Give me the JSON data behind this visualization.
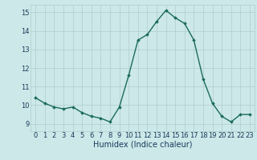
{
  "x": [
    0,
    1,
    2,
    3,
    4,
    5,
    6,
    7,
    8,
    9,
    10,
    11,
    12,
    13,
    14,
    15,
    16,
    17,
    18,
    19,
    20,
    21,
    22,
    23
  ],
  "y": [
    10.4,
    10.1,
    9.9,
    9.8,
    9.9,
    9.6,
    9.4,
    9.3,
    9.1,
    9.9,
    11.6,
    13.5,
    13.8,
    14.5,
    15.1,
    14.7,
    14.4,
    13.5,
    11.4,
    10.1,
    9.4,
    9.1,
    9.5,
    9.5
  ],
  "line_color": "#1a6b5e",
  "marker": "D",
  "marker_size": 1.8,
  "bg_color": "#cce8e8",
  "grid_color_major": "#b0cccc",
  "grid_color_minor": "#c8dcdc",
  "xlabel": "Humidex (Indice chaleur)",
  "xlabel_fontsize": 7,
  "xlabel_color": "#1a3a5c",
  "tick_label_color": "#1a3a5c",
  "tick_fontsize": 6,
  "ylim": [
    8.6,
    15.4
  ],
  "yticks": [
    9,
    10,
    11,
    12,
    13,
    14,
    15
  ],
  "xlim": [
    -0.5,
    23.5
  ],
  "xticks": [
    0,
    1,
    2,
    3,
    4,
    5,
    6,
    7,
    8,
    9,
    10,
    11,
    12,
    13,
    14,
    15,
    16,
    17,
    18,
    19,
    20,
    21,
    22,
    23
  ]
}
